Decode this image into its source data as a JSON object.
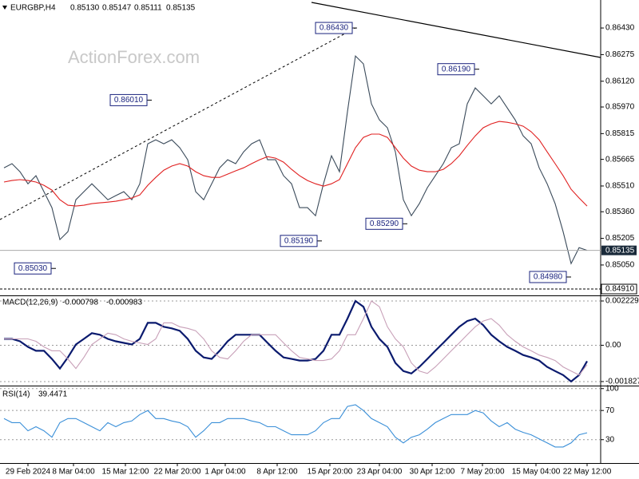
{
  "chart_data": [
    {
      "type": "line",
      "symbol": "EURGBP,H4",
      "ohlc": [
        {
          "value": 0.8513,
          "label": "0.85130"
        },
        {
          "value": 0.85147,
          "label": "0.85147"
        },
        {
          "value": 0.85111,
          "label": "0.85111"
        },
        {
          "value": 0.85135,
          "label": "0.85135"
        }
      ],
      "watermark": "ActionForex.com",
      "xlim": [
        -0.5,
        74.7
      ],
      "ylim": [
        0.84873,
        0.86593
      ],
      "yticks": [
        {
          "value": 0.8643,
          "label": "0.86430"
        },
        {
          "value": 0.86275,
          "label": "0.86275"
        },
        {
          "value": 0.8612,
          "label": "0.86120"
        },
        {
          "value": 0.8597,
          "label": "0.85970"
        },
        {
          "value": 0.85815,
          "label": "0.85815"
        },
        {
          "value": 0.85665,
          "label": "0.85665"
        },
        {
          "value": 0.8551,
          "label": "0.85510"
        },
        {
          "value": 0.8536,
          "label": "0.85360"
        },
        {
          "value": 0.85205,
          "label": "0.85205"
        },
        {
          "value": 0.8505,
          "label": "0.85050"
        }
      ],
      "last_price": {
        "value": 0.85135,
        "label": "0.85135"
      },
      "support": {
        "value": 0.8491,
        "label": "0.84910"
      },
      "series": [
        {
          "color": "#3a4a5a",
          "values": [
            0.85616,
            0.8564,
            0.85593,
            0.85523,
            0.8557,
            0.85477,
            0.85384,
            0.85198,
            0.85244,
            0.8543,
            0.85477,
            0.85523,
            0.85477,
            0.8543,
            0.85454,
            0.85477,
            0.8543,
            0.85523,
            0.85756,
            0.85779,
            0.85756,
            0.85779,
            0.85733,
            0.85663,
            0.85477,
            0.8543,
            0.85523,
            0.85616,
            0.85663,
            0.8564,
            0.85709,
            0.85756,
            0.85779,
            0.85663,
            0.85663,
            0.8557,
            0.85523,
            0.85384,
            0.85384,
            0.85337,
            0.85523,
            0.85686,
            0.85593,
            0.85942,
            0.86267,
            0.86221,
            0.85988,
            0.85895,
            0.85849,
            0.85709,
            0.8543,
            0.85337,
            0.85407,
            0.855,
            0.8557,
            0.8564,
            0.85733,
            0.85756,
            0.85988,
            0.86081,
            0.86035,
            0.85988,
            0.86035,
            0.85965,
            0.85895,
            0.85802,
            0.85756,
            0.85616,
            0.85523,
            0.85407,
            0.85244,
            0.85058,
            0.85151,
            0.85135
          ]
        },
        {
          "color": "#e02020",
          "values": [
            0.85533,
            0.85542,
            0.85547,
            0.85542,
            0.85533,
            0.85514,
            0.85486,
            0.8543,
            0.85398,
            0.85393,
            0.85398,
            0.85407,
            0.85412,
            0.85416,
            0.85421,
            0.8543,
            0.8544,
            0.85458,
            0.85514,
            0.8556,
            0.85602,
            0.85626,
            0.8564,
            0.85626,
            0.85593,
            0.8557,
            0.8556,
            0.8556,
            0.85579,
            0.85598,
            0.85616,
            0.8564,
            0.85663,
            0.85681,
            0.85672,
            0.85649,
            0.85607,
            0.8557,
            0.85542,
            0.85523,
            0.85509,
            0.85523,
            0.85547,
            0.8564,
            0.85733,
            0.85793,
            0.85812,
            0.85812,
            0.85793,
            0.85733,
            0.85672,
            0.85626,
            0.85602,
            0.85593,
            0.85593,
            0.85607,
            0.8564,
            0.85686,
            0.85746,
            0.85802,
            0.85849,
            0.85872,
            0.85886,
            0.85881,
            0.85872,
            0.85858,
            0.85826,
            0.85779,
            0.85709,
            0.8564,
            0.8557,
            0.85491,
            0.8544,
            0.85393
          ]
        }
      ],
      "annotations": [
        {
          "x": 44.2,
          "value": 0.8643,
          "label": "0.86430"
        },
        {
          "x": 18.5,
          "value": 0.8601,
          "label": "0.86010"
        },
        {
          "x": 59.5,
          "value": 0.8619,
          "label": "0.86190"
        },
        {
          "x": 39.8,
          "value": 0.8519,
          "label": "0.85190"
        },
        {
          "x": 50.5,
          "value": 0.8529,
          "label": "0.85290"
        },
        {
          "x": 6.5,
          "value": 0.8503,
          "label": "0.85030"
        },
        {
          "x": 71,
          "value": 0.8498,
          "label": "0.84980"
        }
      ]
    },
    {
      "type": "line",
      "title": "MACD(12,26,9)",
      "readings": [
        -0.000798,
        -0.000983
      ],
      "xlim": [
        -0.5,
        74.7
      ],
      "ylim": [
        -0.00203,
        0.00247
      ],
      "yticks": [
        0.002229,
        {
          "value": 0,
          "label": "0.00"
        },
        -0.001827
      ],
      "series": [
        {
          "color": "#0a1a6e",
          "values": [
            0.00032,
            0.00032,
            0.0002,
            -8e-05,
            -0.00028,
            -0.00028,
            -0.00069,
            -0.00117,
            -0.00061,
            4e-05,
            0.00032,
            0.00061,
            0.00053,
            0.00032,
            0.0002,
            0.00012,
            4e-05,
            0.00032,
            0.00113,
            0.00113,
            0.00093,
            0.00085,
            0.00073,
            0.00032,
            -0.00028,
            -0.00061,
            -0.00069,
            -0.00028,
            0.0002,
            0.00053,
            0.00053,
            0.00053,
            0.00053,
            0.00012,
            -0.00028,
            -0.00061,
            -0.00069,
            -0.00077,
            -0.00077,
            -0.00069,
            -0.00028,
            0.00053,
            0.00053,
            0.00134,
            0.00223,
            0.00194,
            0.00093,
            0.00032,
            -8e-05,
            -0.00089,
            -0.0013,
            -0.00142,
            -0.00109,
            -0.00069,
            -0.00028,
            0.00012,
            0.00053,
            0.00093,
            0.00122,
            0.00134,
            0.00101,
            0.00053,
            0.0002,
            -8e-05,
            -0.00028,
            -0.00049,
            -0.00061,
            -0.00077,
            -0.00109,
            -0.0013,
            -0.0015,
            -0.00182,
            -0.0015,
            -0.0008
          ]
        },
        {
          "color": "#c8a0b8",
          "values": [
            0.00032,
            0.00032,
            0.00032,
            0.00032,
            0.0002,
            -8e-05,
            -0.00028,
            -0.00028,
            -0.00069,
            -0.00117,
            -0.00061,
            4e-05,
            0.00032,
            0.00061,
            0.00053,
            0.00032,
            0.0002,
            0.00012,
            4e-05,
            0.00032,
            0.00113,
            0.00113,
            0.00093,
            0.00085,
            0.00073,
            0.00032,
            -0.00028,
            -0.00061,
            -0.00069,
            -0.00028,
            0.0002,
            0.00053,
            0.00053,
            0.00053,
            0.00053,
            0.00012,
            -0.00028,
            -0.00061,
            -0.00069,
            -0.00077,
            -0.00077,
            -0.00069,
            -0.00028,
            0.00053,
            0.00053,
            0.00134,
            0.00223,
            0.00194,
            0.00093,
            0.00032,
            -8e-05,
            -0.00089,
            -0.0013,
            -0.00142,
            -0.00109,
            -0.00069,
            -0.00028,
            0.00012,
            0.00053,
            0.00093,
            0.00122,
            0.00134,
            0.00101,
            0.00053,
            0.0002,
            -8e-05,
            -0.00028,
            -0.00049,
            -0.00061,
            -0.00077,
            -0.00109,
            -0.0013,
            -0.0015,
            -0.00098
          ]
        }
      ]
    },
    {
      "type": "line",
      "title": "RSI(14)",
      "readings": [
        39.4471
      ],
      "xlim": [
        -0.5,
        74.7
      ],
      "ylim": [
        -2,
        103
      ],
      "yticks": [
        100,
        70,
        30
      ],
      "xticks": [
        {
          "value": 3,
          "label": "29 Feb 2024"
        },
        {
          "value": 8.7,
          "label": "8 Mar 04:00"
        },
        {
          "value": 15.2,
          "label": "15 Mar 12:00"
        },
        {
          "value": 21.7,
          "label": "22 Mar 20:00"
        },
        {
          "value": 27.7,
          "label": "1 Apr 04:00"
        },
        {
          "value": 34.2,
          "label": "8 Apr 12:00"
        },
        {
          "value": 40.8,
          "label": "15 Apr 20:00"
        },
        {
          "value": 47,
          "label": "23 Apr 04:00"
        },
        {
          "value": 53.6,
          "label": "30 Apr 12:00"
        },
        {
          "value": 59.9,
          "label": "7 May 20:00"
        },
        {
          "value": 66.6,
          "label": "15 May 04:00"
        },
        {
          "value": 73,
          "label": "22 May 12:00"
        }
      ],
      "series": [
        {
          "color": "#3a8fd8",
          "values": [
            58.9,
            53.3,
            53.3,
            42.2,
            47.8,
            42.2,
            33.3,
            53.3,
            58.9,
            58.9,
            53.3,
            47.8,
            42.2,
            53.3,
            47.8,
            53.3,
            55.6,
            64.4,
            70,
            58.9,
            58.9,
            55.6,
            53.3,
            47.8,
            33.3,
            42.2,
            53.3,
            53.3,
            58.9,
            58.9,
            58.9,
            55.6,
            53.3,
            47.8,
            47.8,
            42.2,
            36.7,
            36.7,
            36.7,
            42.2,
            53.3,
            58.9,
            58.9,
            75.6,
            77.8,
            70,
            58.9,
            53.3,
            47.8,
            33.3,
            25.6,
            33.3,
            36.7,
            44.4,
            53.3,
            58.9,
            64.4,
            64.4,
            64.4,
            70,
            66.7,
            55.6,
            47.8,
            53.3,
            44.4,
            40,
            36.7,
            31.1,
            25.6,
            20,
            20,
            25.6,
            36.7,
            39.4471
          ]
        }
      ]
    }
  ]
}
